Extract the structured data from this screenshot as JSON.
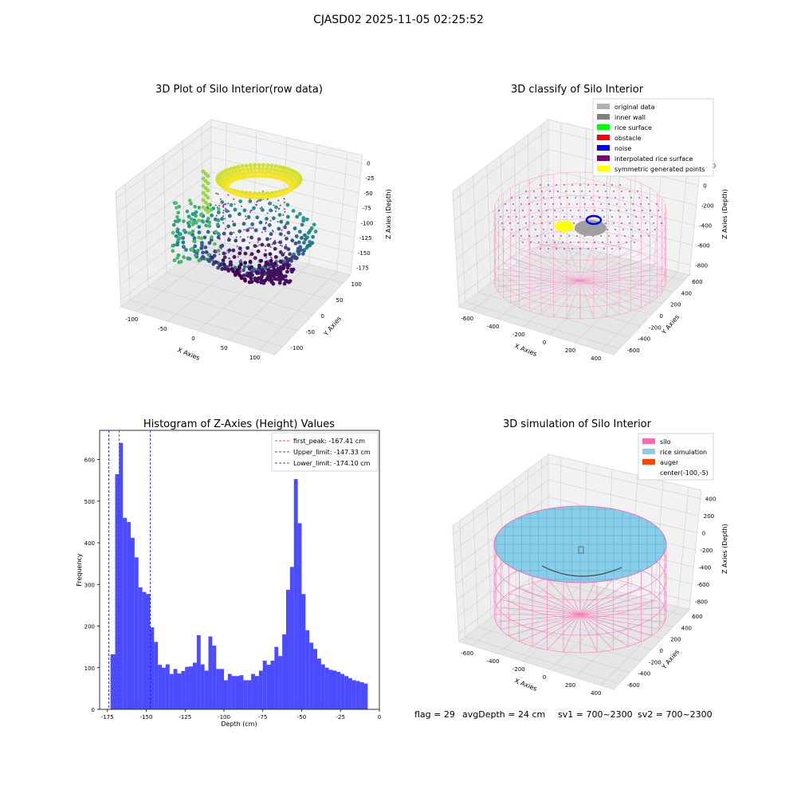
{
  "suptitle": "CJASD02 2025-11-05 02:25:52",
  "footer": {
    "flag": "flag = 29",
    "avg": "avgDepth = 24 cm",
    "sv1": "sv1 = 700~2300",
    "sv2": "sv2 = 700~2300"
  },
  "chart_data": [
    {
      "type": "scatter",
      "projection": "3d",
      "title": "3D Plot of Silo Interior(row data)",
      "xlabel": "X Axies",
      "ylabel": "Y Axies",
      "zlabel": "Z Axies (Depth)",
      "x_ticks": [
        "-100",
        "-50",
        "0",
        "50",
        "100"
      ],
      "y_ticks": [
        "-100",
        "-50",
        "0",
        "50",
        "100"
      ],
      "z_ticks": [
        "0",
        "-25",
        "-50",
        "-75",
        "-100",
        "-125",
        "-150",
        "-175"
      ],
      "colormap": "viridis",
      "grid": true
    },
    {
      "type": "scatter",
      "projection": "3d",
      "title": "3D classify of Silo Interior",
      "xlabel": "X Axies",
      "ylabel": "Y Axies",
      "zlabel": "Z Axies (Depth)",
      "x_ticks": [
        "-600",
        "-400",
        "-200",
        "0",
        "200",
        "400"
      ],
      "y_ticks": [
        "-600",
        "-400",
        "-200",
        "0",
        "200",
        "400",
        "600"
      ],
      "z_ticks": [
        "200",
        "0",
        "-200",
        "-400",
        "-600",
        "-800"
      ],
      "legend": [
        {
          "label": "original data",
          "color": "#b0b0b0"
        },
        {
          "label": "inner wall",
          "color": "#808080"
        },
        {
          "label": "rice surface",
          "color": "#00ff00"
        },
        {
          "label": "obstacle",
          "color": "#ff0000"
        },
        {
          "label": "noise",
          "color": "#0000ff"
        },
        {
          "label": "interpolated rice surface",
          "color": "#800080"
        },
        {
          "label": "symmetric generated points",
          "color": "#ffff00"
        }
      ],
      "legend_loc": "upper right",
      "grid": true
    },
    {
      "type": "bar",
      "title": "Histogram of Z-Axies (Height) Values",
      "xlabel": "Depth (cm)",
      "ylabel": "Frequency",
      "xlim": [
        -180,
        0
      ],
      "ylim": [
        0,
        670
      ],
      "x_ticks": [
        -175,
        -150,
        -125,
        -100,
        -75,
        -50,
        -25,
        0
      ],
      "y_ticks": [
        0,
        100,
        200,
        300,
        400,
        500,
        600
      ],
      "bar_color": "#0000ff",
      "bin_edges": [
        -173,
        -170,
        -167.5,
        -165,
        -162.5,
        -160,
        -157.5,
        -155,
        -152.5,
        -150,
        -147.5,
        -145,
        -142.5,
        -140,
        -137.5,
        -135,
        -132.5,
        -130,
        -127.5,
        -125,
        -122.5,
        -120,
        -117.5,
        -115,
        -112.5,
        -110,
        -107.5,
        -105,
        -102.5,
        -100,
        -97.5,
        -95,
        -92.5,
        -90,
        -87.5,
        -85,
        -82.5,
        -80,
        -77.5,
        -75,
        -72.5,
        -70,
        -67.5,
        -65,
        -62.5,
        -60,
        -57.5,
        -55,
        -52.5,
        -50,
        -47.5,
        -45,
        -42.5,
        -40,
        -37.5,
        -35,
        -32.5,
        -30,
        -27.5,
        -25,
        -22.5,
        -20,
        -17.5,
        -15,
        -12.5,
        -10,
        -7.5
      ],
      "values": [
        132,
        565,
        640,
        460,
        450,
        412,
        365,
        293,
        282,
        277,
        197,
        162,
        107,
        100,
        108,
        85,
        97,
        86,
        92,
        102,
        103,
        112,
        178,
        108,
        93,
        175,
        153,
        97,
        97,
        70,
        85,
        80,
        80,
        82,
        70,
        70,
        85,
        80,
        93,
        117,
        107,
        117,
        150,
        128,
        180,
        287,
        342,
        553,
        447,
        277,
        190,
        160,
        145,
        122,
        108,
        100,
        95,
        93,
        90,
        85,
        80,
        75,
        70,
        68,
        65,
        62
      ],
      "vlines": [
        {
          "label": "first_peak: -167.41 cm",
          "x": -167.41,
          "color": "#ff0000"
        },
        {
          "label": "Upper_limit: -147.33 cm",
          "x": -147.33,
          "color": "#0000ff"
        },
        {
          "label": "Lower_limit: -174.10 cm",
          "x": -174.1,
          "color": "#0000ff"
        }
      ],
      "legend_loc": "upper right"
    },
    {
      "type": "scatter",
      "projection": "3d",
      "title": "3D simulation of Silo Interior",
      "xlabel": "X Axies",
      "ylabel": "Y Axies",
      "zlabel": "Z Axies (Depth)",
      "x_ticks": [
        "-600",
        "-400",
        "-200",
        "0",
        "200",
        "400"
      ],
      "y_ticks": [
        "-600",
        "-400",
        "-200",
        "0",
        "200",
        "400",
        "600"
      ],
      "z_ticks": [
        "400",
        "200",
        "0",
        "-200",
        "-400",
        "-600",
        "-800"
      ],
      "legend": [
        {
          "label": "silo",
          "color": "#ff69b4"
        },
        {
          "label": "rice simulation",
          "color": "#87ceeb"
        },
        {
          "label": "auger",
          "color": "#ff4500"
        },
        {
          "label": "center(-100,-5)",
          "color": ""
        }
      ],
      "legend_loc": "upper right",
      "grid": true
    }
  ]
}
